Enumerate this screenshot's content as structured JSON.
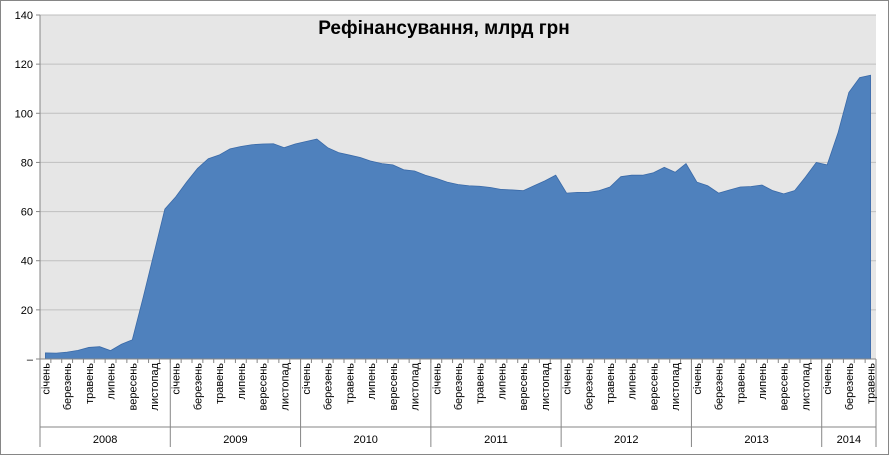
{
  "chart_data": {
    "type": "area",
    "title": "Рефінансування, млрд грн",
    "xlabel": "",
    "ylabel": "",
    "ylim": [
      0,
      140
    ],
    "yticks": [
      {
        "value": 0,
        "label": "–"
      },
      {
        "value": 20,
        "label": "20"
      },
      {
        "value": 40,
        "label": "40"
      },
      {
        "value": 60,
        "label": "60"
      },
      {
        "value": 80,
        "label": "80"
      },
      {
        "value": 100,
        "label": "100"
      },
      {
        "value": 120,
        "label": "120"
      },
      {
        "value": 140,
        "label": "140"
      }
    ],
    "grid": true,
    "legend": "none",
    "colors": {
      "area": "#4f81bd",
      "area_stroke": "#3a6aa8",
      "plot_bg": "#e6e6e6",
      "grid": "#bfbfbf"
    },
    "month_tick_labels": [
      "січень",
      "березень",
      "травень",
      "липень",
      "вересень",
      "листопад"
    ],
    "years": [
      {
        "label": "2008",
        "start": 0,
        "count": 12
      },
      {
        "label": "2009",
        "start": 12,
        "count": 12
      },
      {
        "label": "2010",
        "start": 24,
        "count": 12
      },
      {
        "label": "2011",
        "start": 36,
        "count": 12
      },
      {
        "label": "2012",
        "start": 48,
        "count": 12
      },
      {
        "label": "2013",
        "start": 60,
        "count": 12
      },
      {
        "label": "2014",
        "start": 72,
        "count": 5
      }
    ],
    "values": [
      2.5,
      2.4,
      2.8,
      3.5,
      4.7,
      5.0,
      3.4,
      6.0,
      7.8,
      25.0,
      43.0,
      61.0,
      66.0,
      72.0,
      77.5,
      81.5,
      83.0,
      85.5,
      86.5,
      87.2,
      87.5,
      87.6,
      86.0,
      87.5,
      88.5,
      89.5,
      86.0,
      84.0,
      83.0,
      82.0,
      80.5,
      79.5,
      79.0,
      77.0,
      76.5,
      74.8,
      73.5,
      72.0,
      71.0,
      70.5,
      70.3,
      69.8,
      69.0,
      68.8,
      68.5,
      70.5,
      72.5,
      74.8,
      67.5,
      67.8,
      67.8,
      68.5,
      70.0,
      74.2,
      74.8,
      74.8,
      75.8,
      78.0,
      76.0,
      79.5,
      72.0,
      70.5,
      67.5,
      68.8,
      70.0,
      70.2,
      70.8,
      68.5,
      67.2,
      68.5,
      74.0,
      80.0,
      79.0,
      92.0,
      108.5,
      114.5,
      115.5
    ]
  }
}
